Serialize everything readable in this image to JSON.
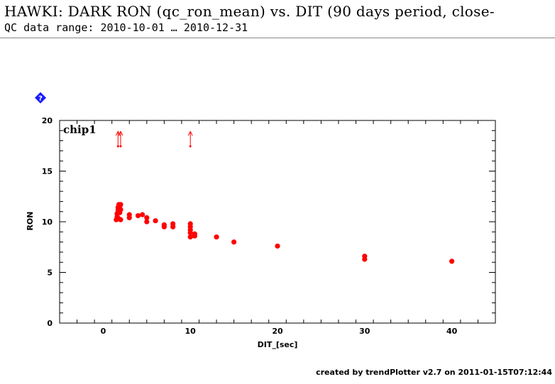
{
  "header": {
    "title": "HAWKI: DARK RON (qc_ron_mean) vs. DIT (90 days period, close-",
    "subtitle": "QC data range: 2010-10-01 … 2010-12-31"
  },
  "footer": {
    "text": "created by trendPlotter v2.7 on 2011-01-15T07:12:44"
  },
  "icons": {
    "help": "help-diamond-icon"
  },
  "colors": {
    "points": "#ff0000",
    "frame": "#000000",
    "help_icon": "#1a1aff"
  },
  "chart_data": {
    "type": "scatter",
    "panel_label": "chip1",
    "xlabel": "DIT_[sec]",
    "ylabel": "RON",
    "xlim": [
      -5,
      45
    ],
    "ylim": [
      0,
      20
    ],
    "x_ticks": [
      0,
      10,
      20,
      30,
      40
    ],
    "y_ticks": [
      0,
      5,
      10,
      15,
      20
    ],
    "grid": false,
    "points": [
      {
        "x": 1.5,
        "y": 10.2
      },
      {
        "x": 1.6,
        "y": 10.5
      },
      {
        "x": 1.6,
        "y": 10.8
      },
      {
        "x": 1.7,
        "y": 11.1
      },
      {
        "x": 1.7,
        "y": 11.4
      },
      {
        "x": 1.8,
        "y": 11.7
      },
      {
        "x": 1.8,
        "y": 10.3
      },
      {
        "x": 1.9,
        "y": 10.9
      },
      {
        "x": 1.9,
        "y": 11.5
      },
      {
        "x": 2.0,
        "y": 10.2
      },
      {
        "x": 2.0,
        "y": 11.2
      },
      {
        "x": 2.0,
        "y": 11.7
      },
      {
        "x": 3.0,
        "y": 10.4
      },
      {
        "x": 3.0,
        "y": 10.7
      },
      {
        "x": 4.0,
        "y": 10.6
      },
      {
        "x": 4.5,
        "y": 10.7
      },
      {
        "x": 5.0,
        "y": 10.0
      },
      {
        "x": 5.0,
        "y": 10.4
      },
      {
        "x": 6.0,
        "y": 10.1
      },
      {
        "x": 7.0,
        "y": 9.5
      },
      {
        "x": 7.0,
        "y": 9.7
      },
      {
        "x": 8.0,
        "y": 9.5
      },
      {
        "x": 8.0,
        "y": 9.8
      },
      {
        "x": 10.0,
        "y": 8.5
      },
      {
        "x": 10.0,
        "y": 8.9
      },
      {
        "x": 10.0,
        "y": 9.2
      },
      {
        "x": 10.0,
        "y": 9.5
      },
      {
        "x": 10.0,
        "y": 9.8
      },
      {
        "x": 10.5,
        "y": 8.6
      },
      {
        "x": 10.5,
        "y": 8.8
      },
      {
        "x": 13.0,
        "y": 8.5
      },
      {
        "x": 15.0,
        "y": 8.0
      },
      {
        "x": 20.0,
        "y": 7.6
      },
      {
        "x": 30.0,
        "y": 6.3
      },
      {
        "x": 30.0,
        "y": 6.6
      },
      {
        "x": 40.0,
        "y": 6.1
      }
    ],
    "upper_limit_markers": [
      {
        "x": 1.7,
        "y": 18.5
      },
      {
        "x": 2.0,
        "y": 18.5
      },
      {
        "x": 10.0,
        "y": 18.5
      }
    ]
  }
}
